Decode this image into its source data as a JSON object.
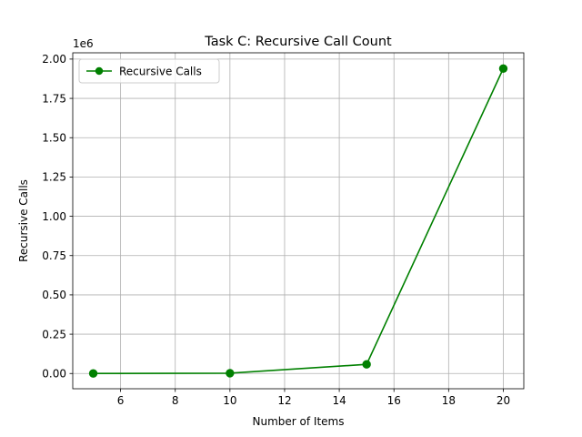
{
  "chart_data": {
    "type": "line",
    "title": "Task C: Recursive Call Count",
    "xlabel": "Number of Items",
    "ylabel": "Recursive Calls",
    "y_offset_label": "1e6",
    "xlim": [
      4.25,
      20.75
    ],
    "ylim": [
      -0.097,
      2.04
    ],
    "xticks": [
      6,
      8,
      10,
      12,
      14,
      16,
      18,
      20
    ],
    "xtick_labels": [
      "6",
      "8",
      "10",
      "12",
      "14",
      "16",
      "18",
      "20"
    ],
    "yticks": [
      0.0,
      0.25,
      0.5,
      0.75,
      1.0,
      1.25,
      1.5,
      1.75,
      2.0
    ],
    "ytick_labels": [
      "0.00",
      "0.25",
      "0.50",
      "0.75",
      "1.00",
      "1.25",
      "1.50",
      "1.75",
      "2.00"
    ],
    "grid": true,
    "legend_position": "top-left",
    "series": [
      {
        "name": "Recursive Calls",
        "color": "#008000",
        "marker": "circle",
        "x": [
          5,
          10,
          15,
          20
        ],
        "y": [
          0.0001,
          0.0021,
          0.058,
          1.94
        ]
      }
    ]
  }
}
